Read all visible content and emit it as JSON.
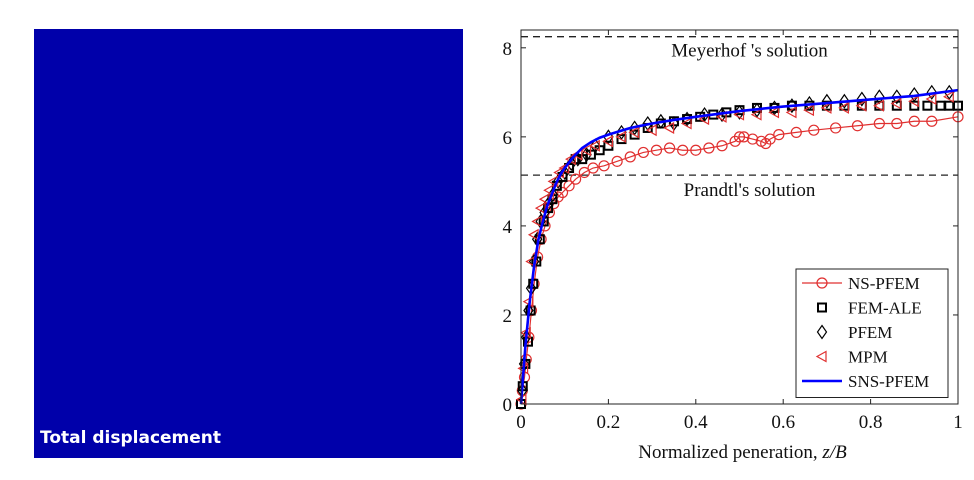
{
  "panel": {
    "label": "Total displacement",
    "color": "#0000AA"
  },
  "chart_data": {
    "type": "line",
    "xlabel": "Normalized peneration, z/B",
    "ylabel": "",
    "xlim": [
      0,
      1
    ],
    "ylim": [
      0,
      8.4
    ],
    "x_ticks": [
      "0",
      "0.2",
      "0.4",
      "0.6",
      "0.8",
      "1"
    ],
    "y_ticks": [
      "0",
      "2",
      "4",
      "6",
      "8"
    ],
    "grid": false,
    "legend_position": "bottom-right",
    "reference_lines": [
      {
        "label": "Meyerhof 's solution",
        "y": 8.25
      },
      {
        "label": "Prandtl's solution",
        "y": 5.14
      }
    ],
    "series": [
      {
        "name": "NS-PFEM",
        "color": "#E03030",
        "marker": "circle",
        "line": true,
        "x": [
          0,
          0.003,
          0.008,
          0.012,
          0.018,
          0.024,
          0.03,
          0.038,
          0.046,
          0.055,
          0.065,
          0.075,
          0.085,
          0.095,
          0.11,
          0.125,
          0.145,
          0.165,
          0.19,
          0.22,
          0.25,
          0.28,
          0.31,
          0.34,
          0.37,
          0.4,
          0.43,
          0.46,
          0.49,
          0.5,
          0.51,
          0.53,
          0.55,
          0.56,
          0.57,
          0.59,
          0.63,
          0.67,
          0.72,
          0.77,
          0.82,
          0.86,
          0.9,
          0.94,
          1.0
        ],
        "y": [
          0,
          0.3,
          0.6,
          1.0,
          1.5,
          2.1,
          2.7,
          3.3,
          3.7,
          4.0,
          4.3,
          4.5,
          4.65,
          4.75,
          4.9,
          5.05,
          5.2,
          5.3,
          5.35,
          5.45,
          5.55,
          5.65,
          5.7,
          5.75,
          5.7,
          5.7,
          5.75,
          5.8,
          5.9,
          6.0,
          6.0,
          5.95,
          5.9,
          5.85,
          5.95,
          6.05,
          6.1,
          6.15,
          6.2,
          6.25,
          6.3,
          6.3,
          6.35,
          6.35,
          6.45
        ]
      },
      {
        "name": "FEM-ALE",
        "color": "#000000",
        "marker": "square",
        "line": false,
        "x": [
          0,
          0.004,
          0.01,
          0.016,
          0.022,
          0.028,
          0.035,
          0.043,
          0.052,
          0.062,
          0.072,
          0.082,
          0.095,
          0.11,
          0.125,
          0.14,
          0.16,
          0.18,
          0.2,
          0.23,
          0.26,
          0.29,
          0.32,
          0.35,
          0.38,
          0.41,
          0.44,
          0.47,
          0.5,
          0.54,
          0.58,
          0.62,
          0.66,
          0.7,
          0.74,
          0.78,
          0.82,
          0.86,
          0.9,
          0.93,
          0.96,
          0.98,
          1.0
        ],
        "y": [
          0,
          0.4,
          0.9,
          1.4,
          2.1,
          2.7,
          3.2,
          3.7,
          4.1,
          4.4,
          4.6,
          4.9,
          5.1,
          5.3,
          5.5,
          5.5,
          5.6,
          5.7,
          5.8,
          5.95,
          6.05,
          6.2,
          6.3,
          6.35,
          6.4,
          6.45,
          6.5,
          6.55,
          6.6,
          6.65,
          6.65,
          6.7,
          6.7,
          6.7,
          6.7,
          6.7,
          6.7,
          6.7,
          6.7,
          6.7,
          6.7,
          6.7,
          6.7
        ]
      },
      {
        "name": "PFEM",
        "color": "#000000",
        "marker": "diamond",
        "line": false,
        "x": [
          0.003,
          0.007,
          0.012,
          0.017,
          0.023,
          0.03,
          0.037,
          0.045,
          0.054,
          0.063,
          0.073,
          0.085,
          0.1,
          0.115,
          0.13,
          0.15,
          0.17,
          0.2,
          0.23,
          0.26,
          0.29,
          0.32,
          0.35,
          0.38,
          0.42,
          0.46,
          0.5,
          0.54,
          0.58,
          0.62,
          0.66,
          0.7,
          0.74,
          0.78,
          0.82,
          0.86,
          0.9,
          0.94,
          0.98
        ],
        "y": [
          0.3,
          0.9,
          1.5,
          2.1,
          2.6,
          3.2,
          3.7,
          4.1,
          4.3,
          4.5,
          4.7,
          5.0,
          5.2,
          5.4,
          5.5,
          5.6,
          5.8,
          6.0,
          6.1,
          6.2,
          6.3,
          6.35,
          6.3,
          6.4,
          6.5,
          6.5,
          6.55,
          6.6,
          6.65,
          6.7,
          6.75,
          6.8,
          6.8,
          6.85,
          6.9,
          6.9,
          6.95,
          7.0,
          7.0
        ]
      },
      {
        "name": "MPM",
        "color": "#E03030",
        "marker": "triangle-left",
        "line": false,
        "x": [
          0.002,
          0.006,
          0.012,
          0.018,
          0.024,
          0.03,
          0.038,
          0.046,
          0.055,
          0.065,
          0.075,
          0.088,
          0.1,
          0.115,
          0.13,
          0.15,
          0.17,
          0.2,
          0.23,
          0.26,
          0.3,
          0.34,
          0.38,
          0.42,
          0.46,
          0.5,
          0.54,
          0.58,
          0.62,
          0.66,
          0.7,
          0.74,
          0.78,
          0.82,
          0.86,
          0.9,
          0.94,
          0.98
        ],
        "y": [
          0.1,
          0.8,
          1.6,
          2.3,
          3.2,
          3.8,
          4.1,
          4.4,
          4.6,
          4.8,
          5.0,
          5.2,
          5.3,
          5.5,
          5.6,
          5.7,
          5.8,
          5.9,
          6.0,
          6.1,
          6.15,
          6.2,
          6.3,
          6.4,
          6.45,
          6.5,
          6.5,
          6.55,
          6.55,
          6.6,
          6.65,
          6.65,
          6.7,
          6.7,
          6.75,
          6.8,
          6.85,
          6.9
        ]
      },
      {
        "name": "SNS-PFEM",
        "color": "#0000FF",
        "marker": "none",
        "line": true,
        "x": [
          0,
          0.01,
          0.02,
          0.03,
          0.04,
          0.05,
          0.06,
          0.07,
          0.08,
          0.09,
          0.1,
          0.12,
          0.14,
          0.16,
          0.18,
          0.2,
          0.25,
          0.3,
          0.35,
          0.4,
          0.5,
          0.6,
          0.7,
          0.8,
          0.9,
          1.0
        ],
        "y": [
          0,
          1.3,
          2.3,
          3.1,
          3.7,
          4.1,
          4.45,
          4.7,
          4.95,
          5.15,
          5.3,
          5.55,
          5.75,
          5.88,
          5.98,
          6.05,
          6.2,
          6.3,
          6.38,
          6.45,
          6.58,
          6.68,
          6.76,
          6.84,
          6.92,
          7.05
        ]
      }
    ]
  }
}
